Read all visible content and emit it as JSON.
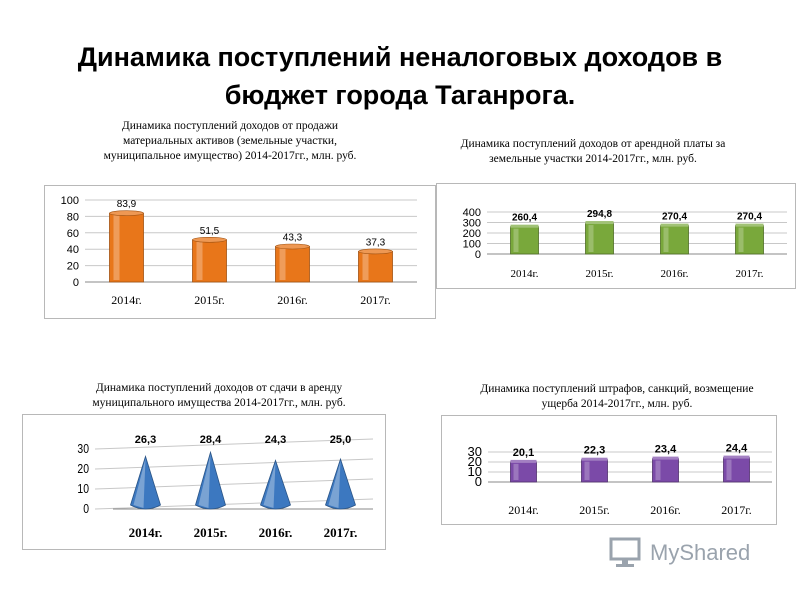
{
  "title_line1": "Динамика поступлений неналоговых доходов в",
  "title_line2": "бюджет города Таганрога.",
  "watermark_text": "MyShared",
  "chart_data": [
    {
      "type": "bar",
      "caption_lines": [
        "Динамика поступлений доходов от продажи",
        "материальных активов (земельные участки,",
        "муниципальное имущество) 2014-2017гг., млн. руб."
      ],
      "categories": [
        "2014г.",
        "2015г.",
        "2016г.",
        "2017г."
      ],
      "values": [
        83.9,
        51.5,
        43.3,
        37.3
      ],
      "labels": [
        "83,9",
        "51,5",
        "43,3",
        "37,3"
      ],
      "ylim": [
        0,
        100
      ],
      "yticks": [
        "0",
        "20",
        "40",
        "60",
        "80",
        "100"
      ],
      "grid": true,
      "bar_style": "cylinder",
      "color": "#E8761A"
    },
    {
      "type": "bar",
      "caption_lines": [
        "Динамика поступлений доходов от арендной платы за",
        "земельные участки 2014-2017гг., млн. руб."
      ],
      "categories": [
        "2014г.",
        "2015г.",
        "2016г.",
        "2017г."
      ],
      "values": [
        260.4,
        294.8,
        270.4,
        270.4
      ],
      "labels": [
        "260,4",
        "294,8",
        "270,4",
        "270,4"
      ],
      "ylim": [
        0,
        400
      ],
      "yticks": [
        "0",
        "100",
        "200",
        "300",
        "400"
      ],
      "grid": true,
      "bar_style": "box",
      "color": "#79A83B"
    },
    {
      "type": "bar",
      "caption_lines": [
        "Динамика поступлений доходов от сдачи в аренду",
        "муниципального имущества 2014-2017гг., млн. руб."
      ],
      "categories": [
        "2014г.",
        "2015г.",
        "2016г.",
        "2017г."
      ],
      "values": [
        26.3,
        28.4,
        24.3,
        25.0
      ],
      "labels": [
        "26,3",
        "28,4",
        "24,3",
        "25,0"
      ],
      "ylim": [
        0,
        30
      ],
      "yticks": [
        "0",
        "10",
        "20",
        "30"
      ],
      "grid": true,
      "bar_style": "cone",
      "color": "#3C78C0"
    },
    {
      "type": "bar",
      "caption_lines": [
        "Динамика поступлений штрафов, санкций, возмещение",
        "ущерба 2014-2017гг., млн. руб."
      ],
      "categories": [
        "2014г.",
        "2015г.",
        "2016г.",
        "2017г."
      ],
      "values": [
        20.1,
        22.3,
        23.4,
        24.4
      ],
      "labels": [
        "20,1",
        "22,3",
        "23,4",
        "24,4"
      ],
      "ylim": [
        0,
        30
      ],
      "yticks": [
        "0",
        "10",
        "20",
        "30"
      ],
      "grid": true,
      "bar_style": "box",
      "color": "#7B4AA8"
    }
  ]
}
